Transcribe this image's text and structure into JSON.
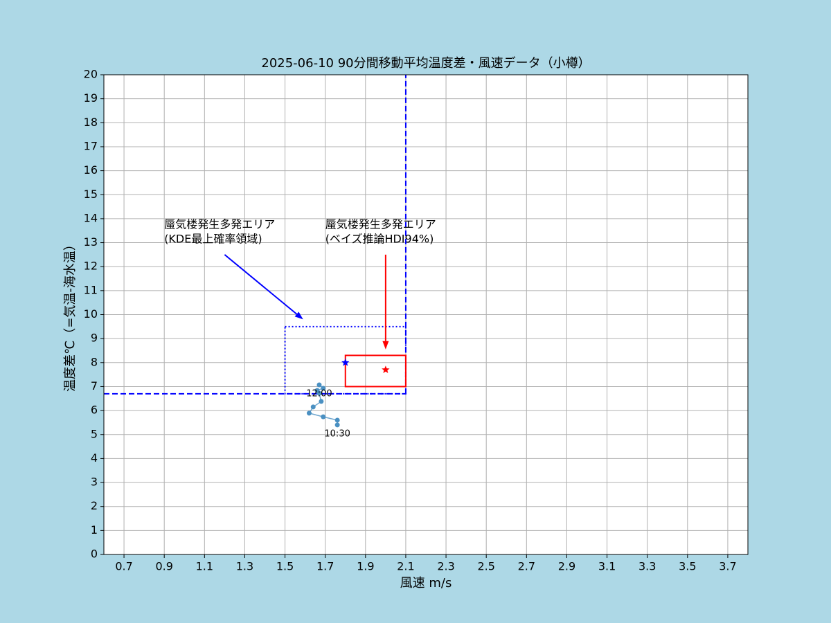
{
  "chart_data": {
    "type": "scatter",
    "title": "2025-06-10  90分間移動平均温度差・風速データ（小樽）",
    "x_label": "風速 m/s",
    "y_label": "温度差℃（=気温-海水温）",
    "xlim": [
      0.6,
      3.8
    ],
    "ylim": [
      0,
      20
    ],
    "xticks": [
      0.7,
      0.9,
      1.1,
      1.3,
      1.5,
      1.7,
      1.9,
      2.1,
      2.3,
      2.5,
      2.7,
      2.9,
      3.1,
      3.3,
      3.5,
      3.7
    ],
    "yticks": [
      0,
      1,
      2,
      3,
      4,
      5,
      6,
      7,
      8,
      9,
      10,
      11,
      12,
      13,
      14,
      15,
      16,
      17,
      18,
      19,
      20
    ],
    "grid": true,
    "series": [
      {
        "color": "#4a90c2",
        "x": [
          1.76,
          1.76,
          1.69,
          1.62,
          1.64,
          1.68,
          1.67,
          1.66,
          1.69,
          1.67
        ],
        "values": [
          5.4,
          5.6,
          5.74,
          5.89,
          6.15,
          6.38,
          6.72,
          6.84,
          6.93,
          7.07
        ],
        "labels": [
          "10:30",
          null,
          null,
          null,
          null,
          null,
          null,
          null,
          null,
          "12:00"
        ]
      }
    ],
    "threshold_x": 2.1,
    "threshold_y": 6.7,
    "threshold_color": "#0000ff",
    "kde_region": {
      "x": [
        1.5,
        2.1
      ],
      "y": [
        6.7,
        9.5
      ],
      "color": "#0000ff"
    },
    "hdi_region": {
      "x": [
        1.8,
        2.1
      ],
      "y": [
        7.0,
        8.3
      ],
      "color": "#ff0000"
    },
    "kde_peak": {
      "x": 1.8,
      "y": 8.0,
      "color": "#0000ff"
    },
    "hdi_center": {
      "x": 2.0,
      "y": 7.7,
      "color": "#ff0000"
    },
    "annotations": [
      {
        "lines": [
          "蜃気楼発生多発エリア",
          "(KDE最上確率領域)"
        ],
        "text_at": [
          0.9,
          14.0
        ],
        "arrow_from": [
          1.2,
          12.5
        ],
        "arrow_to": [
          1.59,
          9.8
        ],
        "color": "#0000ff"
      },
      {
        "lines": [
          "蜃気楼発生多発エリア",
          "(ベイズ推論HDI94%)"
        ],
        "text_at": [
          1.7,
          14.0
        ],
        "arrow_from": [
          2.0,
          12.5
        ],
        "arrow_to": [
          2.0,
          8.55
        ],
        "color": "#ff0000"
      }
    ]
  }
}
